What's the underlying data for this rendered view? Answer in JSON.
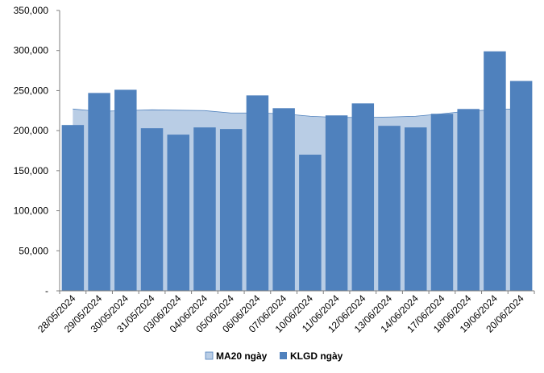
{
  "chart_data": {
    "type": "bar",
    "categories": [
      "28/05/2024",
      "29/05/2024",
      "30/05/2024",
      "31/05/2024",
      "03/06/2024",
      "04/06/2024",
      "05/06/2024",
      "06/06/2024",
      "07/06/2024",
      "10/06/2024",
      "11/06/2024",
      "12/06/2024",
      "13/06/2024",
      "14/06/2024",
      "17/06/2024",
      "18/06/2024",
      "19/06/2024",
      "20/06/2024"
    ],
    "series": [
      {
        "name": "MA20 ngày",
        "type": "area",
        "color": "#b9cde5",
        "edge_color": "#4f81bd",
        "values": [
          227000,
          224000,
          225000,
          226000,
          225500,
          225000,
          222000,
          222000,
          221000,
          218000,
          216500,
          216500,
          217000,
          218000,
          221000,
          224500,
          226000,
          227500
        ]
      },
      {
        "name": "KLGD ngày",
        "type": "bar",
        "color": "#4f81bd",
        "values": [
          207000,
          247000,
          251000,
          203000,
          195000,
          204000,
          202000,
          244000,
          228000,
          170000,
          219000,
          234000,
          206000,
          204000,
          221000,
          227000,
          299000,
          262000
        ]
      }
    ],
    "y_ticks": [
      "-",
      "50,000",
      "100,000",
      "150,000",
      "200,000",
      "250,000",
      "300,000",
      "350,000"
    ],
    "ylim": [
      0,
      350000
    ],
    "grid": false,
    "legend_position": "bottom-center"
  }
}
